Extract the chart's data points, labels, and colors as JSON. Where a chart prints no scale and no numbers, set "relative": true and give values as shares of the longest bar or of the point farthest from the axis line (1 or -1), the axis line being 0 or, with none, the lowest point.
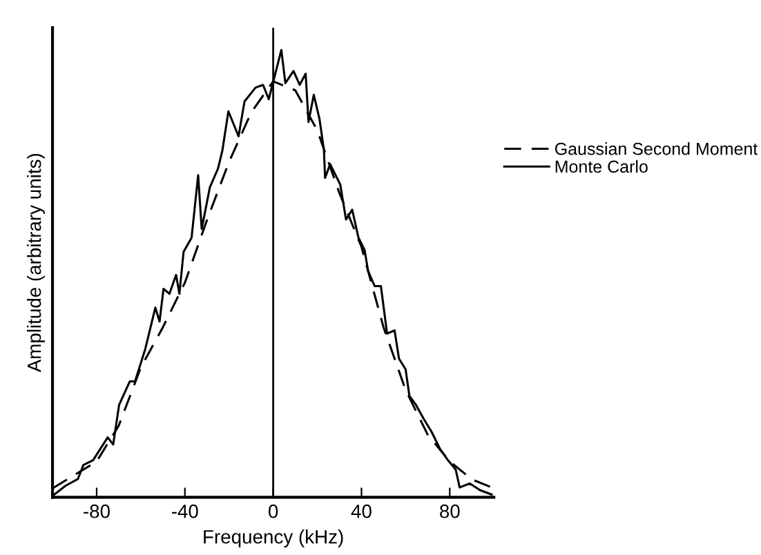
{
  "chart_data": {
    "type": "line",
    "xlabel": "Frequency (kHz)",
    "ylabel": "Amplitude (arbitrary units)",
    "relative": true,
    "xlim": [
      -100,
      100
    ],
    "xticks": [
      -80,
      -40,
      0,
      40,
      80
    ],
    "grid": false,
    "legend": "right",
    "marker": "none",
    "ref_lines": [
      {
        "axis": "x",
        "value": 0,
        "color": "#000000",
        "line_style": "solid"
      }
    ],
    "series": [
      {
        "name": "Gaussian Second Moment",
        "color": "#000000",
        "line_style": "dashed",
        "x": [
          -100,
          -90,
          -80,
          -70,
          -60,
          -50,
          -40,
          -30,
          -20,
          -10,
          0,
          10,
          20,
          30,
          40,
          50,
          60,
          70,
          80,
          90,
          100
        ],
        "values": [
          0.02,
          0.05,
          0.08,
          0.16,
          0.29,
          0.38,
          0.48,
          0.62,
          0.75,
          0.86,
          0.93,
          0.91,
          0.82,
          0.68,
          0.56,
          0.38,
          0.24,
          0.14,
          0.08,
          0.04,
          0.02
        ]
      },
      {
        "name": "Monte Carlo",
        "color": "#000000",
        "line_style": "solid",
        "x": [
          -99.5,
          -94,
          -88.5,
          -86,
          -81.6,
          -75,
          -72.5,
          -69.8,
          -65,
          -62.6,
          -58,
          -53.4,
          -51.5,
          -49.7,
          -47,
          -44,
          -42.5,
          -40.6,
          -37,
          -34,
          -32.4,
          -28.7,
          -25,
          -23,
          -20.3,
          -15.7,
          -13,
          -8,
          -4.6,
          -2,
          3.7,
          5.5,
          9.2,
          12,
          14.7,
          16,
          18.4,
          21,
          23,
          23.5,
          25.8,
          30.4,
          33,
          35.8,
          38.6,
          41.4,
          43,
          46,
          48.8,
          51.6,
          55,
          57,
          60,
          61.7,
          64.5,
          68,
          71.8,
          75.5,
          79,
          82.7,
          84.5,
          89,
          93.7,
          99
        ],
        "values": [
          0.005,
          0.026,
          0.041,
          0.072,
          0.083,
          0.134,
          0.118,
          0.207,
          0.259,
          0.259,
          0.331,
          0.424,
          0.393,
          0.466,
          0.455,
          0.497,
          0.455,
          0.549,
          0.58,
          0.72,
          0.6,
          0.693,
          0.735,
          0.776,
          0.863,
          0.807,
          0.885,
          0.916,
          0.922,
          0.89,
          1.0,
          0.926,
          0.953,
          0.922,
          0.947,
          0.839,
          0.9,
          0.845,
          0.776,
          0.714,
          0.745,
          0.699,
          0.621,
          0.643,
          0.581,
          0.553,
          0.506,
          0.472,
          0.472,
          0.366,
          0.373,
          0.31,
          0.286,
          0.227,
          0.208,
          0.177,
          0.146,
          0.109,
          0.084,
          0.062,
          0.022,
          0.031,
          0.016,
          0.006
        ]
      }
    ]
  }
}
